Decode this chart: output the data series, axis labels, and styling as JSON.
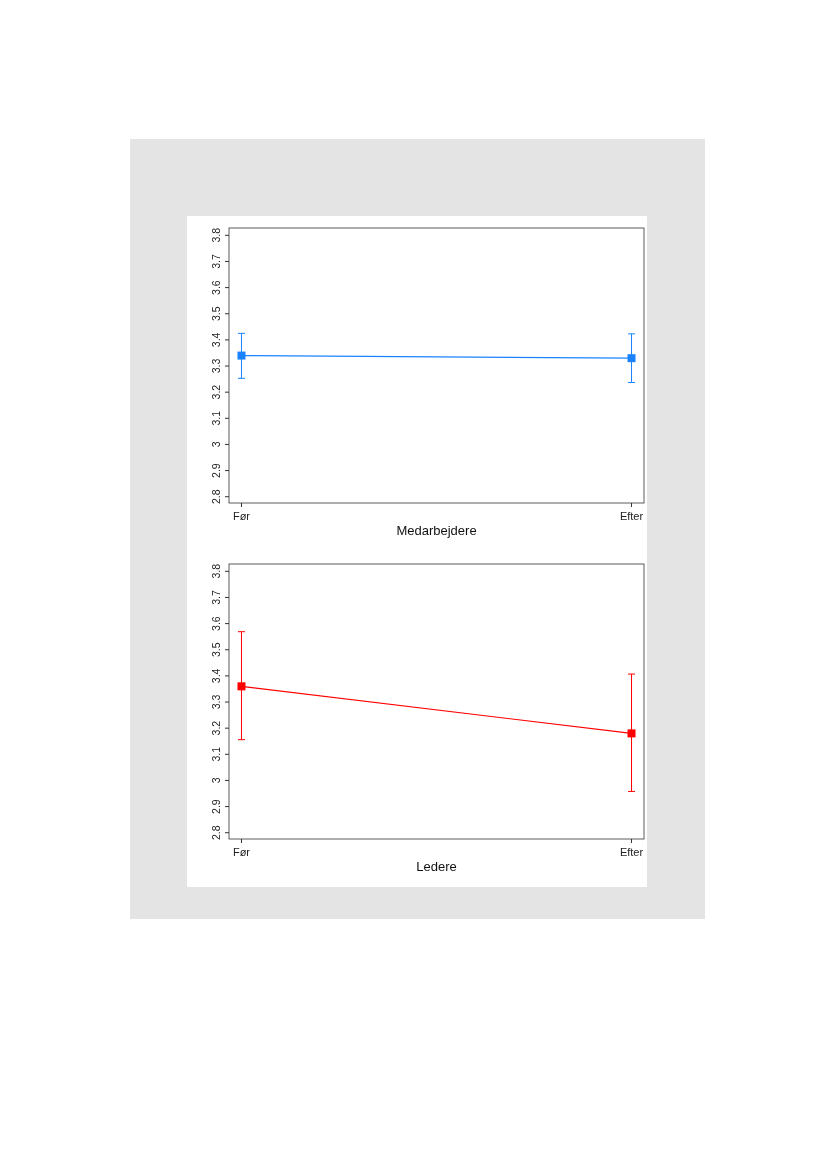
{
  "chart_data": [
    {
      "type": "line",
      "xlabel": "Medarbejdere",
      "categories": [
        "Før",
        "Efter"
      ],
      "series": [
        {
          "color": "#1a82ff",
          "values": [
            3.34,
            3.33
          ],
          "errors": [
            [
              3.253,
              3.425
            ],
            [
              3.237,
              3.423
            ]
          ]
        }
      ],
      "ylim": [
        2.776,
        3.828
      ],
      "yticks": [
        2.8,
        2.9,
        3,
        3.1,
        3.2,
        3.3,
        3.4,
        3.5,
        3.6,
        3.7,
        3.8
      ],
      "marker": "square",
      "line_style": "solid"
    },
    {
      "type": "line",
      "xlabel": "Ledere",
      "categories": [
        "Før",
        "Efter"
      ],
      "series": [
        {
          "color": "#ff0000",
          "values": [
            3.36,
            3.18
          ],
          "errors": [
            [
              3.156,
              3.569
            ],
            [
              2.958,
              3.407
            ]
          ]
        }
      ],
      "ylim": [
        2.776,
        3.828
      ],
      "yticks": [
        2.8,
        2.9,
        3,
        3.1,
        3.2,
        3.3,
        3.4,
        3.5,
        3.6,
        3.7,
        3.8
      ],
      "marker": "square",
      "line_style": "solid"
    }
  ]
}
